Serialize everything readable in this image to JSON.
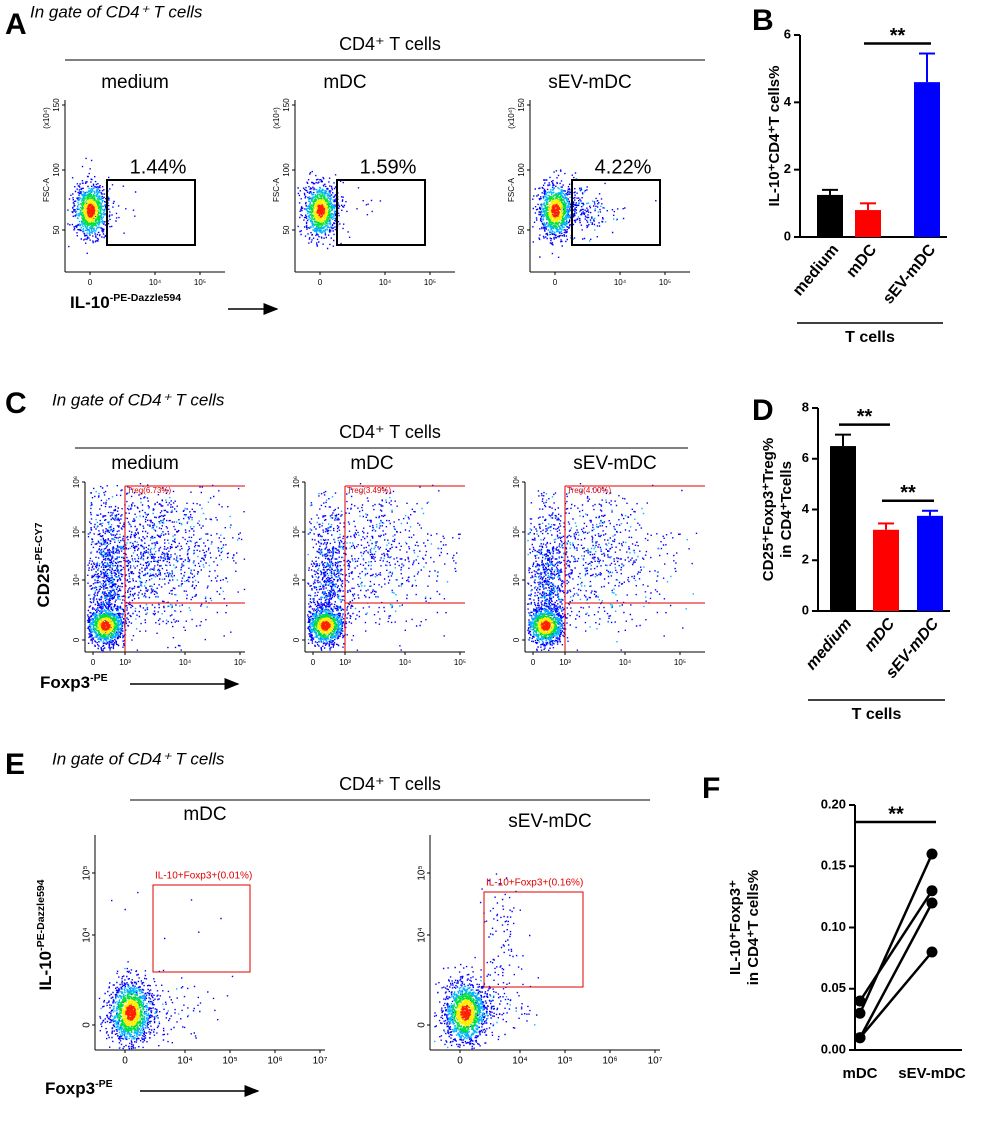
{
  "figure": {
    "panels": {
      "A": {
        "letter": "A",
        "gate_note": "In gate of CD4⁺ T cells",
        "group": "CD4⁺ T cells",
        "plots": [
          {
            "title": "medium",
            "gate": "1.44%"
          },
          {
            "title": "mDC",
            "gate": "1.59%"
          },
          {
            "title": "sEV-mDC",
            "gate": "4.22%"
          }
        ],
        "y_label": "FSC-A",
        "y_unit": "(x10⁴)",
        "yticks": [
          "150",
          "100",
          "50"
        ],
        "xticks": [
          "0",
          "10⁴",
          "10⁵"
        ],
        "x_label": "IL-10",
        "x_label_sup": "-PE-Dazzle594"
      },
      "C": {
        "letter": "C",
        "gate_note": "In gate of CD4⁺ T cells",
        "group": "CD4⁺ T cells",
        "plots": [
          {
            "title": "medium",
            "gate": "Treg(6.73%)"
          },
          {
            "title": "mDC",
            "gate": "Treg(3.49%)"
          },
          {
            "title": "sEV-mDC",
            "gate": "Treg(4.00%)"
          }
        ],
        "yticks": [
          "10⁶",
          "10⁵",
          "10⁴",
          "0"
        ],
        "xticks": [
          "0",
          "10³",
          "10⁴",
          "10⁵"
        ],
        "y_label": "CD25",
        "y_label_sup": "-PE-CY7",
        "x_label": "Foxp3",
        "x_label_sup": "-PE"
      },
      "E": {
        "letter": "E",
        "gate_note": "In gate of CD4⁺ T cells",
        "group": "CD4⁺ T cells",
        "plots": [
          {
            "title": "mDC",
            "gate": "IL-10+Foxp3+(0.01%)"
          },
          {
            "title": "sEV-mDC",
            "gate": "IL-10+Foxp3+(0.16%)"
          }
        ],
        "yticks": [
          "10⁵",
          "10⁴",
          "0"
        ],
        "xticks": [
          "0",
          "10⁴",
          "10⁵",
          "10⁶",
          "10⁷"
        ],
        "y_label": "IL-10",
        "y_label_sup": "-PE-Dazzle594",
        "x_label": "Foxp3",
        "x_label_sup": "-PE"
      }
    }
  },
  "chart_data": [
    {
      "panel_label": "B",
      "type": "bar",
      "categories": [
        "medium",
        "mDC",
        "sEV-mDC"
      ],
      "values": [
        1.25,
        0.8,
        4.6
      ],
      "errors": [
        0.15,
        0.2,
        0.85
      ],
      "colors": [
        "#000000",
        "#ff0000",
        "#0000ff"
      ],
      "ylim": [
        0,
        6
      ],
      "yticks": [
        0,
        2,
        4,
        6
      ],
      "ylabel_lines": [
        "IL-10⁺CD4⁺T cells%"
      ],
      "group_label": "T cells",
      "significance": [
        {
          "pair": [
            1,
            2
          ],
          "label": "**"
        }
      ]
    },
    {
      "panel_label": "D",
      "type": "bar",
      "categories": [
        "medium",
        "mDC",
        "sEV-mDC"
      ],
      "values": [
        6.5,
        3.2,
        3.75
      ],
      "errors": [
        0.45,
        0.25,
        0.2
      ],
      "colors": [
        "#000000",
        "#ff0000",
        "#0000ff"
      ],
      "ylim": [
        0,
        8
      ],
      "yticks": [
        0,
        2,
        4,
        6,
        8
      ],
      "ylabel_lines": [
        "CD25⁺Foxp3⁺Treg%",
        "in CD4⁺Tcells"
      ],
      "group_label": "T cells",
      "italic_categories": true,
      "significance": [
        {
          "pair": [
            0,
            1
          ],
          "label": "**"
        },
        {
          "pair": [
            1,
            2
          ],
          "label": "**"
        }
      ]
    },
    {
      "panel_label": "F",
      "type": "line",
      "categories": [
        "mDC",
        "sEV-mDC"
      ],
      "series": [
        {
          "color": "#000000",
          "values": [
            0.04,
            0.13
          ]
        },
        {
          "color": "#000000",
          "values": [
            0.03,
            0.16
          ]
        },
        {
          "color": "#000000",
          "values": [
            0.01,
            0.12
          ]
        },
        {
          "color": "#000000",
          "values": [
            0.01,
            0.08
          ]
        }
      ],
      "ylim": [
        0,
        0.2
      ],
      "yticks": [
        {
          "value": 0,
          "label": "0.00"
        },
        {
          "value": 0.05,
          "label": "0.05"
        },
        {
          "value": 0.1,
          "label": "0.10"
        },
        {
          "value": 0.15,
          "label": "0.15"
        },
        {
          "value": 0.2,
          "label": "0.20"
        }
      ],
      "ylabel_lines": [
        "IL-10⁺Foxp3⁺",
        "in CD4⁺T cells%"
      ],
      "significance": [
        {
          "pair": [
            0,
            1
          ],
          "label": "**"
        }
      ]
    }
  ]
}
